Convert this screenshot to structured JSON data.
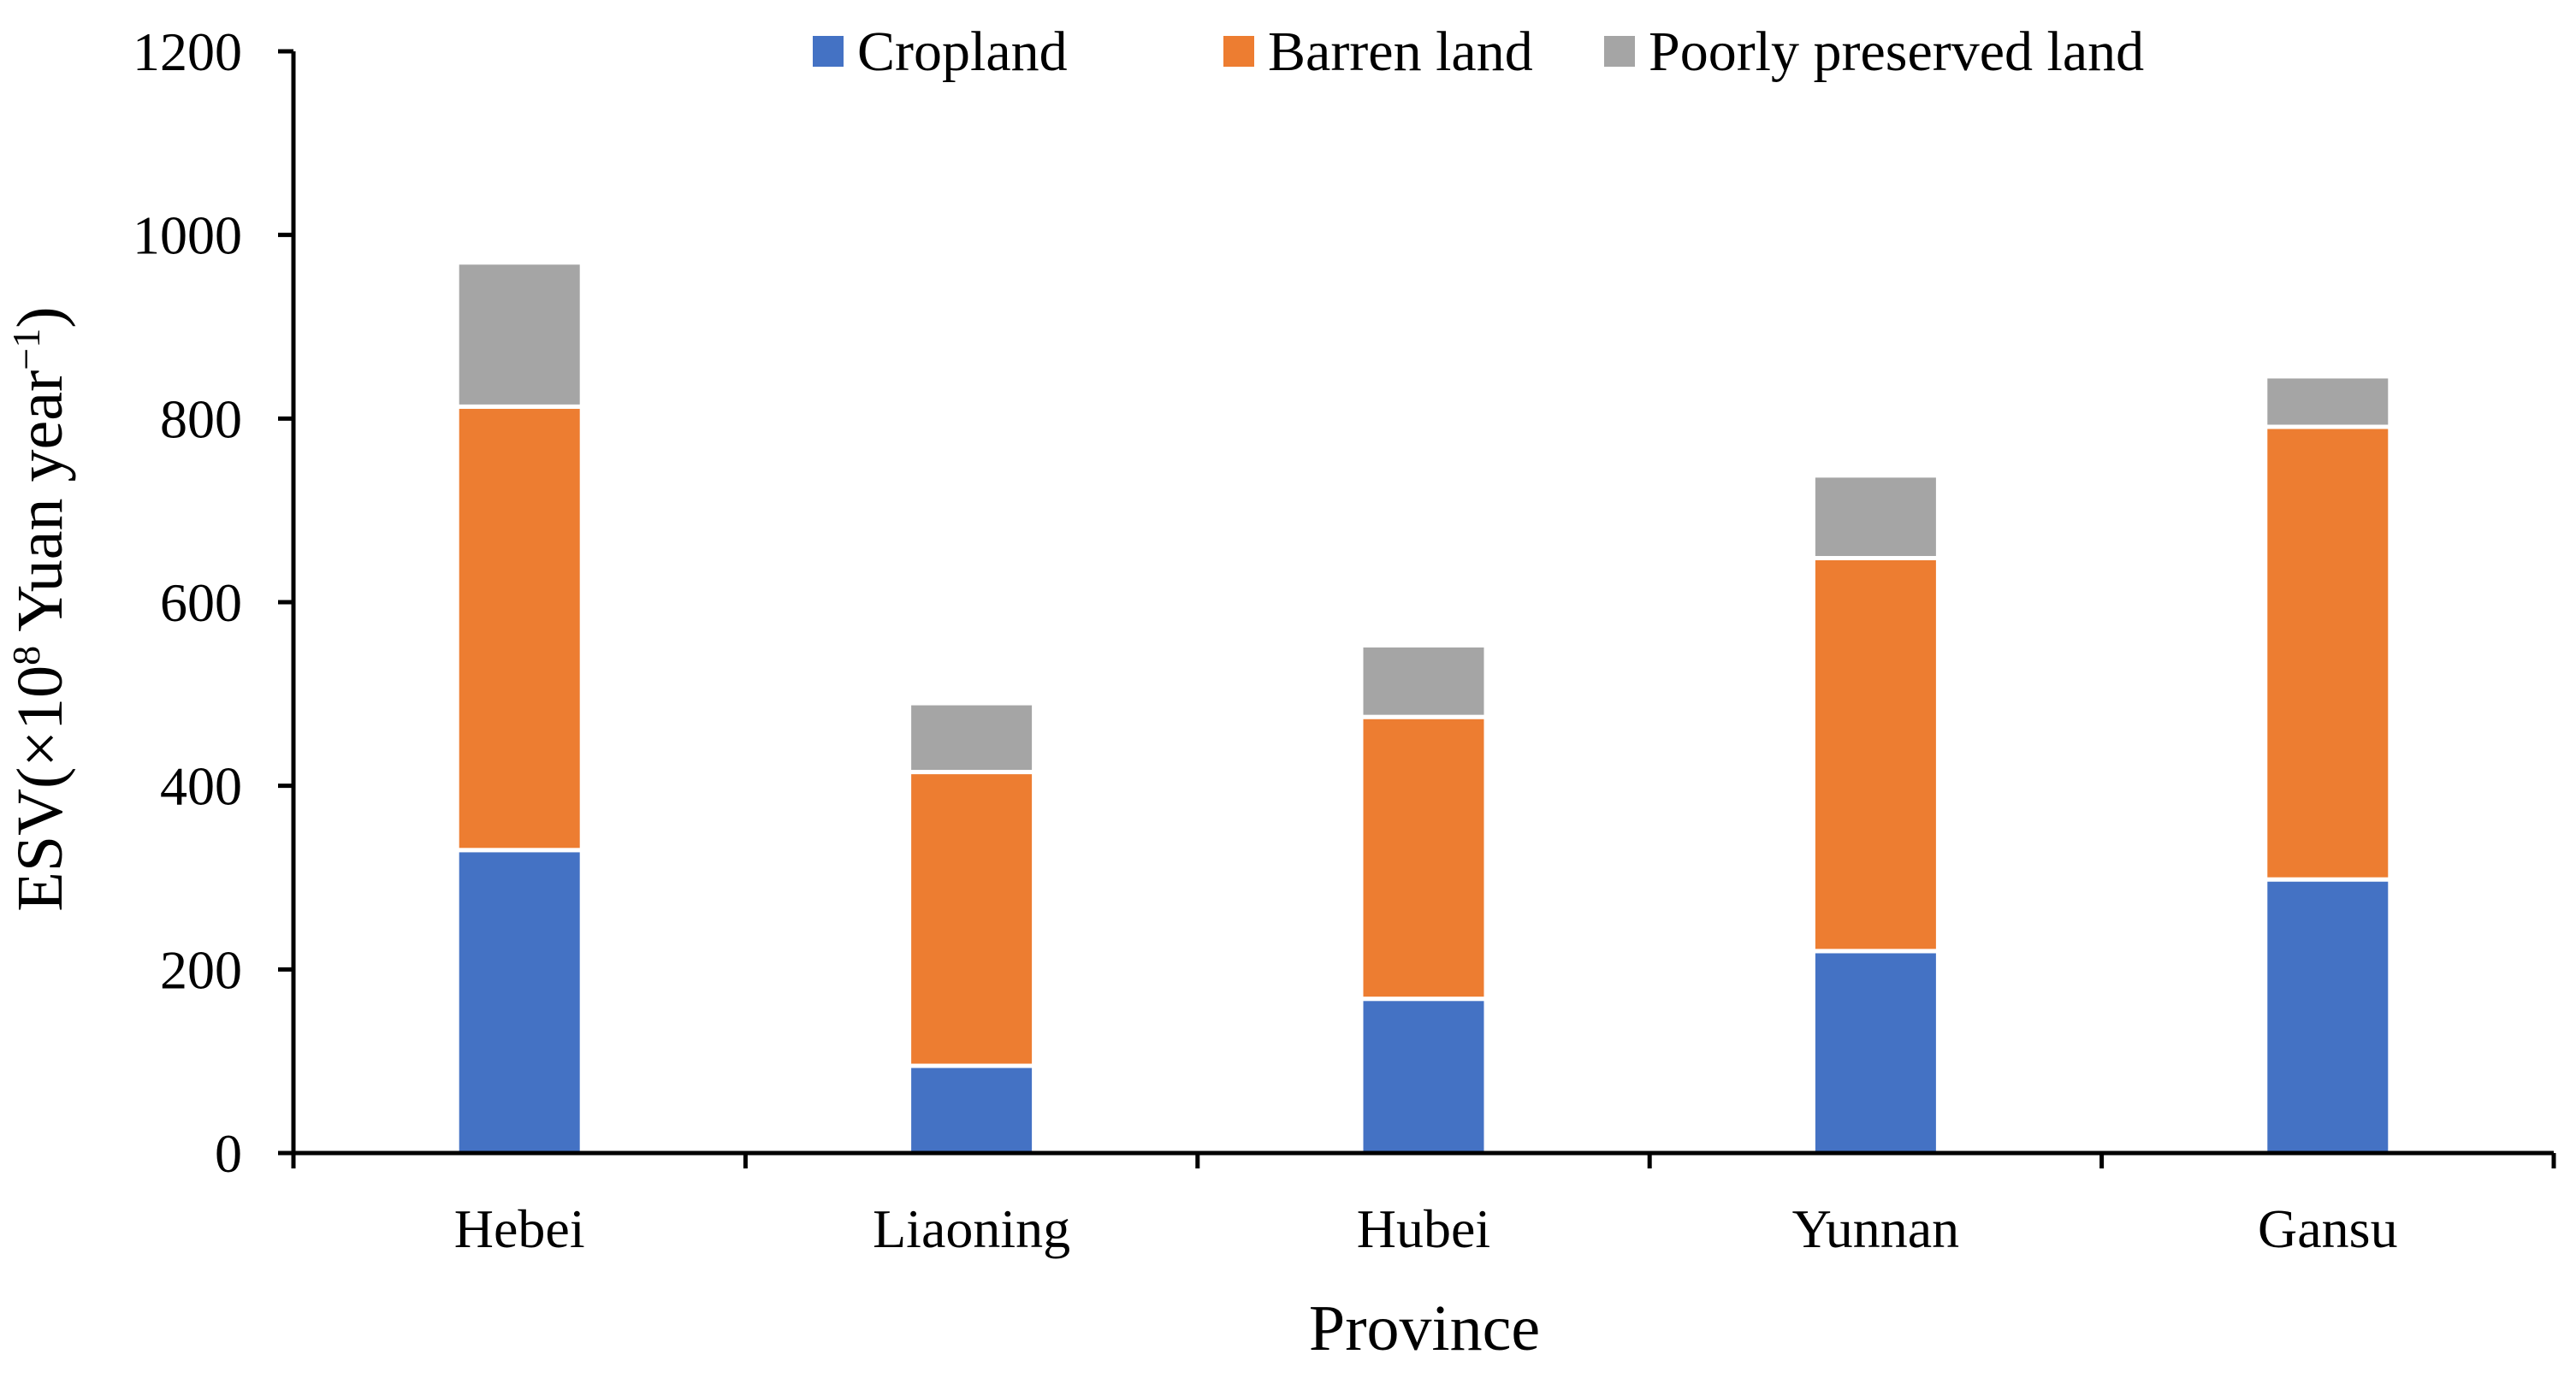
{
  "chart_data": {
    "type": "bar",
    "stacked": true,
    "title": "",
    "xlabel": "Province",
    "ylabel": {
      "prefix": "ESV(×10",
      "exp": "8",
      "middle": " Yuan year",
      "exp2": "−1",
      "suffix": ")"
    },
    "ylim": [
      0,
      1200
    ],
    "yticks": [
      0,
      200,
      400,
      600,
      800,
      1000,
      1200
    ],
    "categories": [
      "Hebei",
      "Liaoning",
      "Hubei",
      "Yunnan",
      "Gansu"
    ],
    "series": [
      {
        "name": "Cropland",
        "color": "#4472C4",
        "values": [
          330,
          95,
          168,
          220,
          298
        ]
      },
      {
        "name": "Barren land",
        "color": "#ED7D31",
        "values": [
          483,
          320,
          307,
          428,
          493
        ]
      },
      {
        "name": "Poorly preserved land",
        "color": "#A5A5A5",
        "values": [
          157,
          75,
          78,
          90,
          55
        ]
      }
    ],
    "legend_position": "top",
    "grid": false
  }
}
